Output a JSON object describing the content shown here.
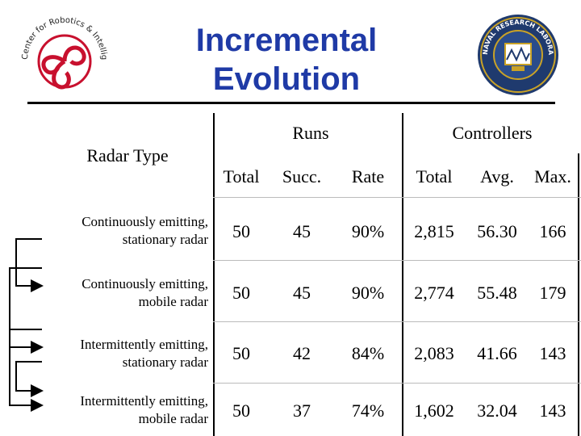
{
  "slide": {
    "title_line1": "Incremental",
    "title_line2": "Evolution",
    "colors": {
      "title": "#1f3aa6",
      "logo_red": "#c8102e",
      "logo_navy": "#1f3a6e",
      "logo_gold": "#c9a227"
    }
  },
  "logos": {
    "left": {
      "icon": "ncsu-center-robotics-logo",
      "text": "Center for Robotics & Intelligent Machines · NCSU ·"
    },
    "right": {
      "icon": "naval-research-laboratory-seal",
      "text": "NAVAL RESEARCH LABORATORY · WASHINGTON DC ·"
    }
  },
  "table": {
    "row_header": "Radar Type",
    "group_headers": [
      "Runs",
      "Controllers"
    ],
    "sub_headers": [
      "Total",
      "Succ.",
      "Rate",
      "Total",
      "Avg.",
      "Max."
    ],
    "rows": [
      {
        "label_line1": "Continuously emitting,",
        "label_line2": "stationary radar",
        "cells": [
          "50",
          "45",
          "90%",
          "2,815",
          "56.30",
          "166"
        ]
      },
      {
        "label_line1": "Continuously emitting,",
        "label_line2": "mobile radar",
        "cells": [
          "50",
          "45",
          "90%",
          "2,774",
          "55.48",
          "179"
        ]
      },
      {
        "label_line1": "Intermittently emitting,",
        "label_line2": "stationary radar",
        "cells": [
          "50",
          "42",
          "84%",
          "2,083",
          "41.66",
          "143"
        ]
      },
      {
        "label_line1": "Intermittently emitting,",
        "label_line2": "mobile radar",
        "cells": [
          "50",
          "37",
          "74%",
          "1,602",
          "32.04",
          "143"
        ]
      }
    ]
  }
}
